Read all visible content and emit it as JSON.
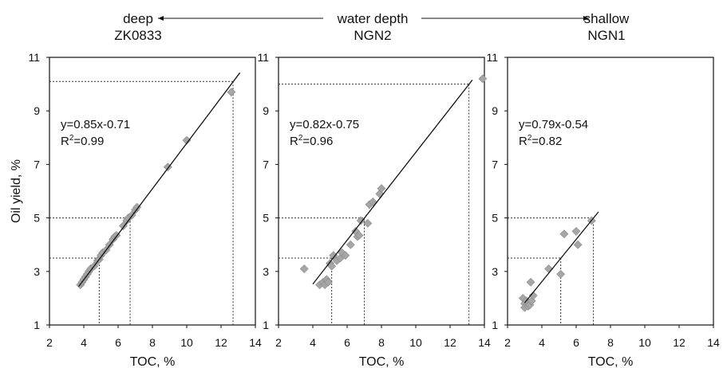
{
  "header": {
    "left": "deep",
    "center": "water depth",
    "right": "shallow"
  },
  "chart_data": [
    {
      "type": "scatter",
      "title": "ZK0833",
      "xlabel": "TOC, %",
      "ylabel": "Oil yield, %",
      "xlim": [
        2,
        14
      ],
      "ylim": [
        1,
        11
      ],
      "xticks": [
        "2",
        "4",
        "6",
        "8",
        "10",
        "12",
        "14"
      ],
      "yticks": [
        "1",
        "3",
        "5",
        "7",
        "9",
        "11"
      ],
      "fit": {
        "slope": 0.85,
        "intercept": -0.71,
        "x_range": [
          3.7,
          13.1
        ]
      },
      "equation": "y=0.85x-0.71",
      "r2_label": "R",
      "r2_value": "=0.99",
      "guides": [
        {
          "x": 4.9,
          "y": 3.5
        },
        {
          "x": 6.7,
          "y": 5.0
        },
        {
          "x": 12.7,
          "y": 10.1
        }
      ],
      "points": [
        [
          3.8,
          2.5
        ],
        [
          3.9,
          2.6
        ],
        [
          4.0,
          2.7
        ],
        [
          4.1,
          2.8
        ],
        [
          4.2,
          2.9
        ],
        [
          4.3,
          3.0
        ],
        [
          4.4,
          3.1
        ],
        [
          4.6,
          3.2
        ],
        [
          4.8,
          3.4
        ],
        [
          4.9,
          3.45
        ],
        [
          5.0,
          3.6
        ],
        [
          5.1,
          3.7
        ],
        [
          5.3,
          3.8
        ],
        [
          5.5,
          4.0
        ],
        [
          5.7,
          4.2
        ],
        [
          5.8,
          4.3
        ],
        [
          5.9,
          4.35
        ],
        [
          6.3,
          4.7
        ],
        [
          6.5,
          4.9
        ],
        [
          6.6,
          5.0
        ],
        [
          6.8,
          5.1
        ],
        [
          7.0,
          5.3
        ],
        [
          7.1,
          5.4
        ],
        [
          8.9,
          6.9
        ],
        [
          10.0,
          7.9
        ],
        [
          12.6,
          9.7
        ]
      ]
    },
    {
      "type": "scatter",
      "title": "NGN2",
      "xlabel": "TOC, %",
      "xlim": [
        2,
        14
      ],
      "ylim": [
        1,
        11
      ],
      "xticks": [
        "2",
        "4",
        "6",
        "8",
        "10",
        "12",
        "14"
      ],
      "yticks": [
        "1",
        "3",
        "5",
        "7",
        "9",
        "11"
      ],
      "fit": {
        "slope": 0.82,
        "intercept": -0.75,
        "x_range": [
          4.0,
          13.3
        ]
      },
      "equation": "y=0.82x-0.75",
      "r2_label": "R",
      "r2_value": "=0.96",
      "guides": [
        {
          "x": 5.1,
          "y": 3.5
        },
        {
          "x": 7.0,
          "y": 5.0
        },
        {
          "x": 13.1,
          "y": 10.0
        }
      ],
      "points": [
        [
          3.5,
          3.1
        ],
        [
          4.4,
          2.5
        ],
        [
          4.6,
          2.6
        ],
        [
          4.7,
          2.5
        ],
        [
          4.8,
          2.7
        ],
        [
          4.9,
          2.6
        ],
        [
          5.0,
          3.3
        ],
        [
          5.1,
          3.2
        ],
        [
          5.2,
          3.6
        ],
        [
          5.4,
          3.4
        ],
        [
          5.6,
          3.5
        ],
        [
          5.7,
          3.7
        ],
        [
          5.9,
          3.6
        ],
        [
          6.2,
          4.0
        ],
        [
          6.5,
          4.5
        ],
        [
          6.6,
          4.3
        ],
        [
          6.7,
          4.35
        ],
        [
          6.8,
          4.9
        ],
        [
          7.2,
          4.8
        ],
        [
          7.3,
          5.5
        ],
        [
          7.5,
          5.6
        ],
        [
          7.9,
          5.9
        ],
        [
          8.0,
          6.1
        ],
        [
          13.9,
          10.2
        ]
      ]
    },
    {
      "type": "scatter",
      "title": "NGN1",
      "xlabel": "TOC, %",
      "xlim": [
        2,
        14
      ],
      "ylim": [
        1,
        11
      ],
      "xticks": [
        "2",
        "4",
        "6",
        "8",
        "10",
        "12",
        "14"
      ],
      "yticks": [
        "1",
        "3",
        "5",
        "7",
        "9",
        "11"
      ],
      "fit": {
        "slope": 0.79,
        "intercept": -0.54,
        "x_range": [
          3.0,
          7.3
        ]
      },
      "equation": "y=0.79x-0.54",
      "r2_label": "R",
      "r2_value": "=0.82",
      "guides": [
        {
          "x": 5.1,
          "y": 3.5
        },
        {
          "x": 7.0,
          "y": 5.0
        }
      ],
      "points": [
        [
          2.9,
          2.0
        ],
        [
          3.0,
          1.8
        ],
        [
          3.0,
          1.65
        ],
        [
          3.1,
          1.9
        ],
        [
          3.2,
          1.7
        ],
        [
          3.3,
          1.75
        ],
        [
          3.35,
          2.6
        ],
        [
          3.4,
          1.9
        ],
        [
          3.5,
          2.1
        ],
        [
          4.4,
          3.1
        ],
        [
          5.1,
          2.9
        ],
        [
          5.3,
          4.4
        ],
        [
          6.0,
          4.5
        ],
        [
          6.1,
          4.0
        ],
        [
          6.9,
          4.9
        ]
      ]
    }
  ]
}
